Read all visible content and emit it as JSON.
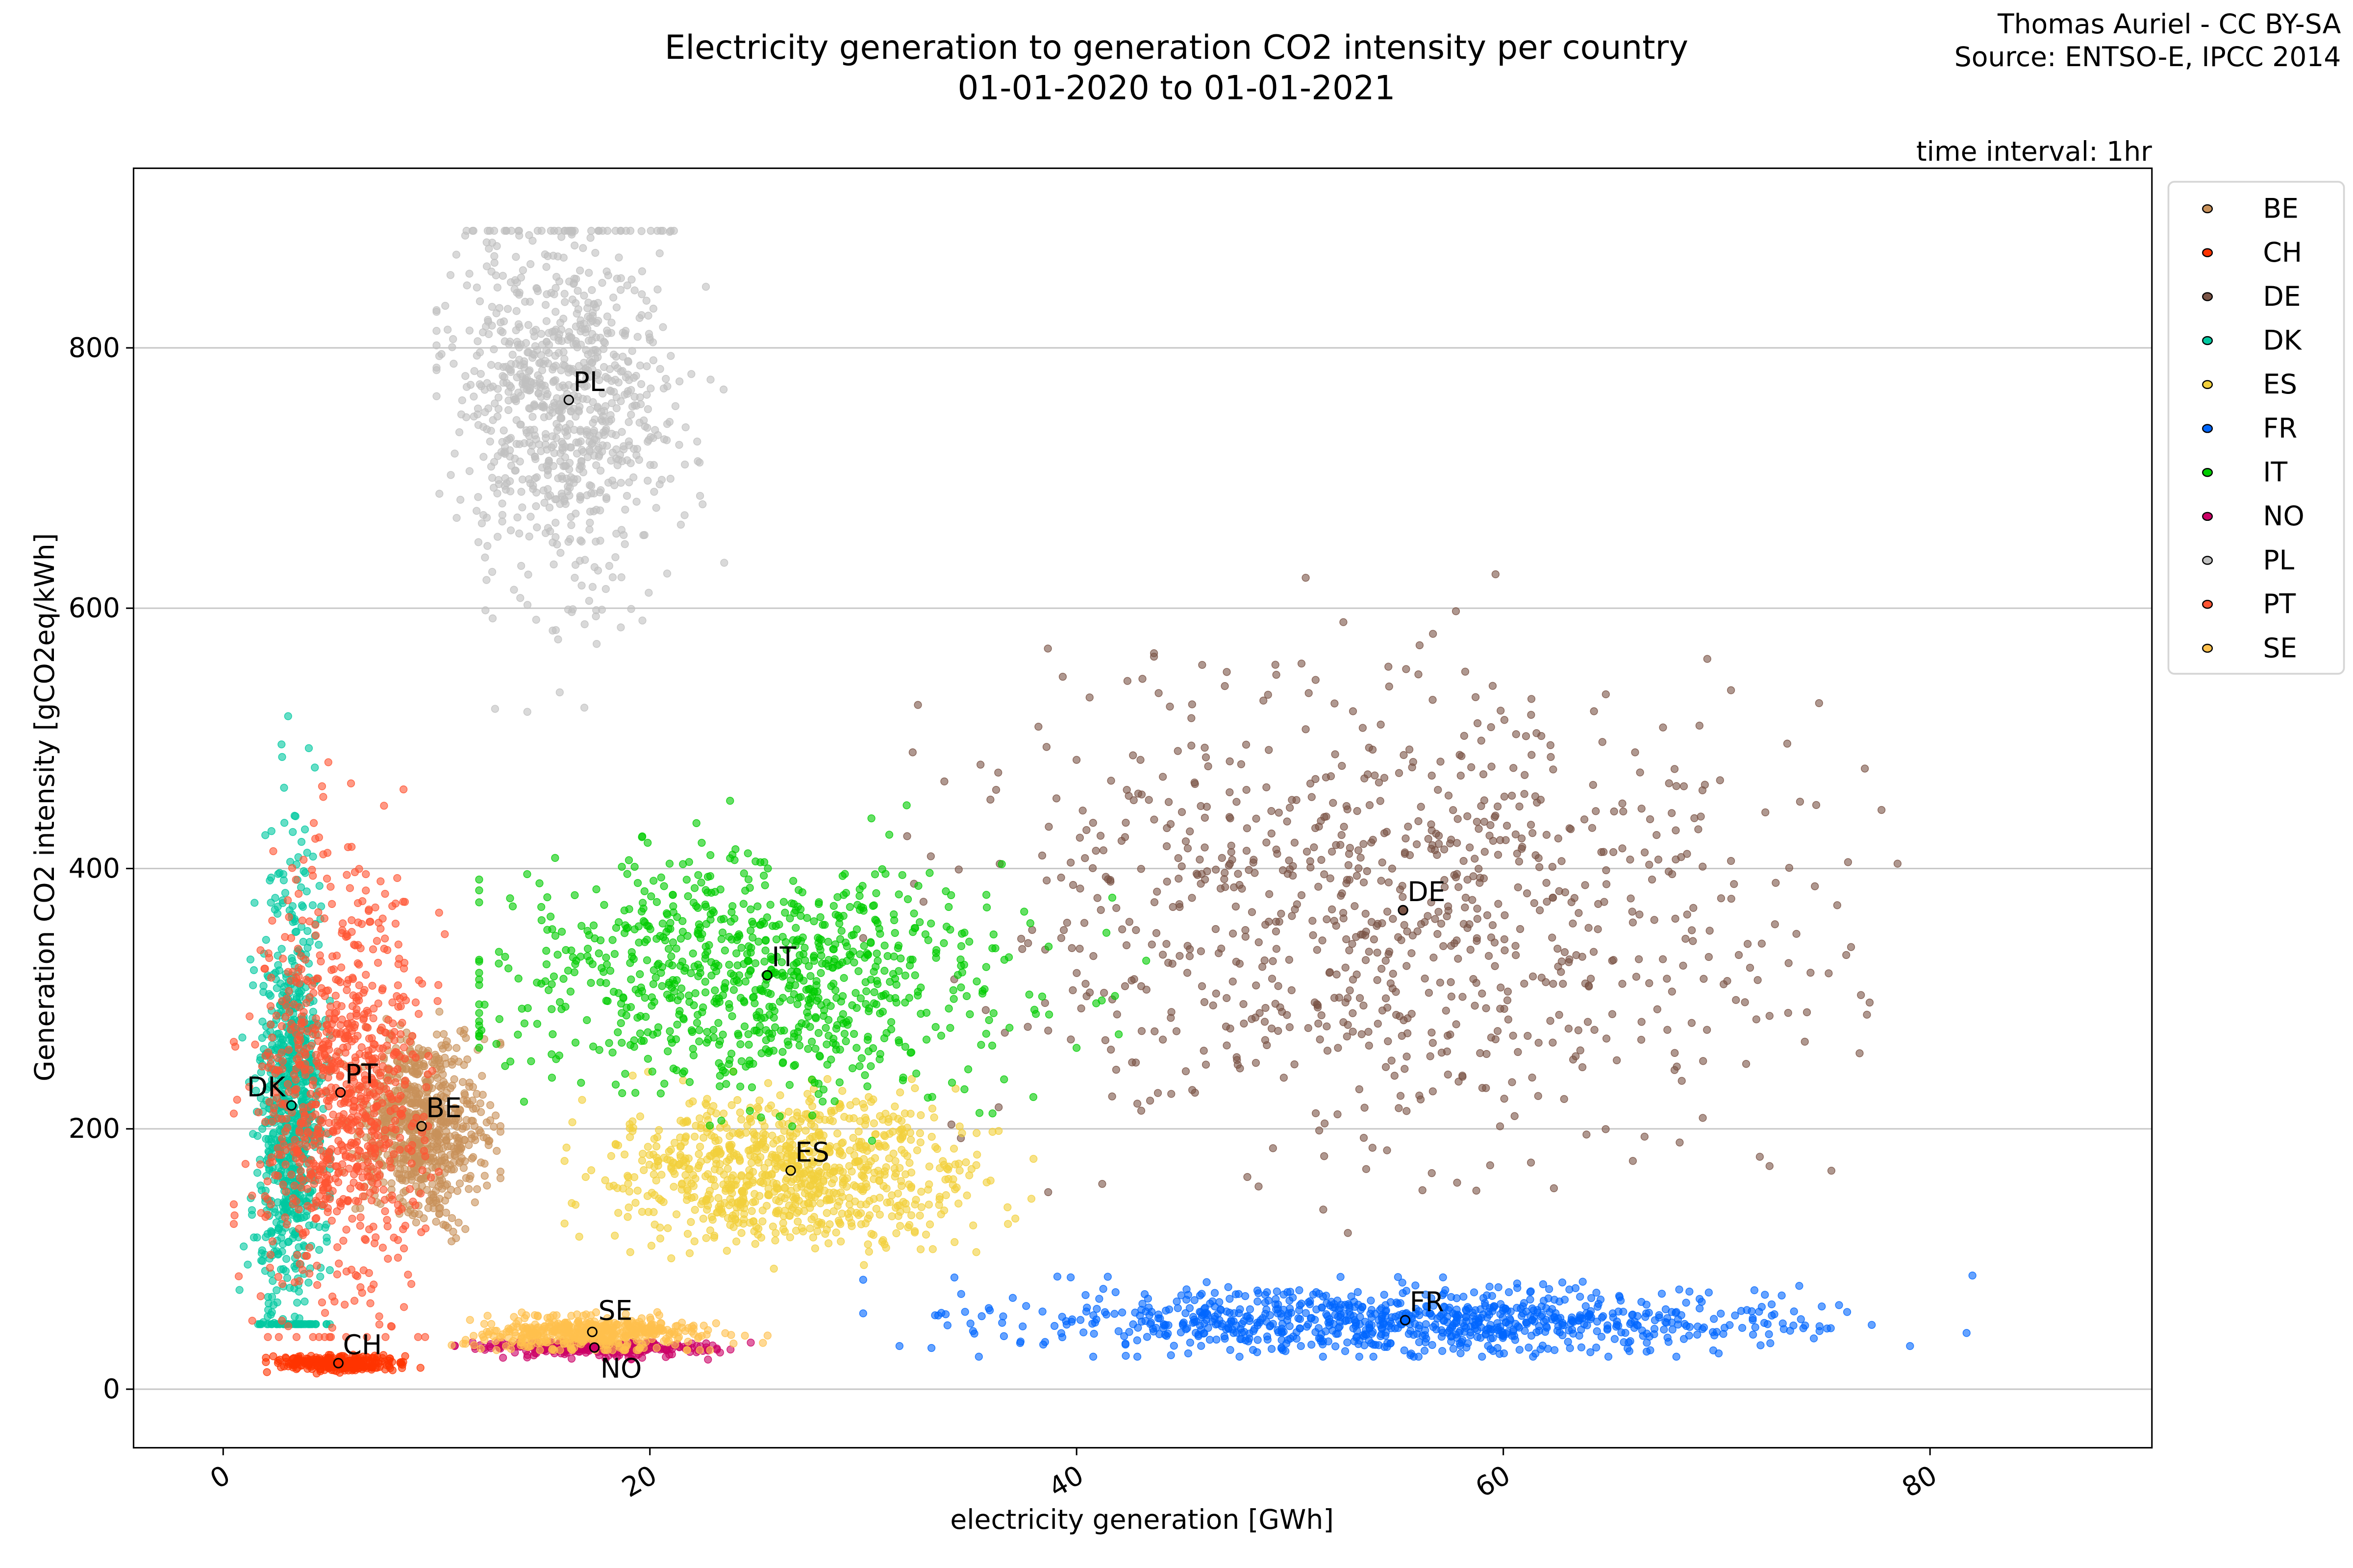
{
  "chart_data": {
    "type": "scatter",
    "title": "Electricity generation to generation CO2 intensity per country",
    "subtitle": "01-01-2020 to 01-01-2021",
    "credit": "Thomas Auriel - CC BY-SA",
    "source": "Source: ENTSO-E, IPCC 2014",
    "interval": "time interval: 1hr",
    "xlabel": "electricity generation [GWh]",
    "ylabel": "Generation CO2 intensity [gCO2eq/kWh]",
    "xlim": [
      -4.2,
      90.4
    ],
    "ylim": [
      -45,
      938
    ],
    "xticks": [
      0,
      20,
      40,
      60,
      80
    ],
    "yticks": [
      0,
      200,
      400,
      600,
      800
    ],
    "grid": "horizontal",
    "legend_placement": "outside-right",
    "series": [
      {
        "name": "BE",
        "color": "#c8915a",
        "median": [
          9.3,
          202
        ],
        "x_range": [
          4,
          13
        ],
        "y_range": [
          100,
          290
        ]
      },
      {
        "name": "CH",
        "color": "#ff3300",
        "median": [
          5.4,
          20
        ],
        "x_range": [
          2,
          11
        ],
        "y_range": [
          12,
          30
        ]
      },
      {
        "name": "DE",
        "color": "#7a5446",
        "median": [
          55.3,
          368
        ],
        "x_range": [
          30,
          86
        ],
        "y_range": [
          120,
          665
        ]
      },
      {
        "name": "DK",
        "color": "#00c8a0",
        "median": [
          3.2,
          218
        ],
        "x_range": [
          0.5,
          5
        ],
        "y_range": [
          50,
          580
        ]
      },
      {
        "name": "ES",
        "color": "#f2d03c",
        "median": [
          26.6,
          168
        ],
        "x_range": [
          16,
          40
        ],
        "y_range": [
          85,
          260
        ]
      },
      {
        "name": "FR",
        "color": "#0066ff",
        "median": [
          55.4,
          53
        ],
        "x_range": [
          30,
          86
        ],
        "y_range": [
          25,
          100
        ]
      },
      {
        "name": "IT",
        "color": "#00cc00",
        "median": [
          25.5,
          318
        ],
        "x_range": [
          12,
          47
        ],
        "y_range": [
          190,
          460
        ]
      },
      {
        "name": "NO",
        "color": "#cc0066",
        "median": [
          17.4,
          32
        ],
        "x_range": [
          10,
          27
        ],
        "y_range": [
          20,
          36
        ]
      },
      {
        "name": "PL",
        "color": "#c0c0c0",
        "median": [
          16.2,
          760
        ],
        "x_range": [
          10,
          25
        ],
        "y_range": [
          480,
          890
        ]
      },
      {
        "name": "PT",
        "color": "#ff5533",
        "median": [
          5.5,
          228
        ],
        "x_range": [
          0.5,
          12
        ],
        "y_range": [
          40,
          535
        ]
      },
      {
        "name": "SE",
        "color": "#ffc04d",
        "median": [
          17.3,
          44
        ],
        "x_range": [
          10,
          26
        ],
        "y_range": [
          30,
          70
        ]
      }
    ]
  }
}
